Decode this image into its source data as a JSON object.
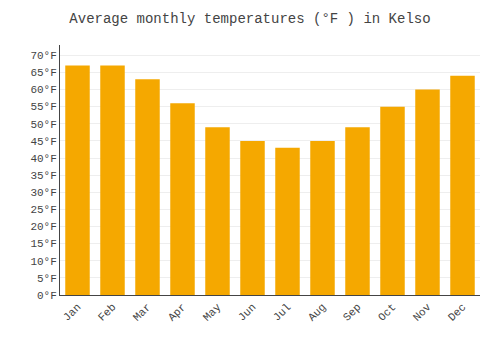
{
  "chart_data": {
    "type": "bar",
    "title": "Average monthly temperatures (°F ) in Kelso",
    "categories": [
      "Jan",
      "Feb",
      "Mar",
      "Apr",
      "May",
      "Jun",
      "Jul",
      "Aug",
      "Sep",
      "Oct",
      "Nov",
      "Dec"
    ],
    "values": [
      67,
      67,
      63,
      56,
      49,
      45,
      43,
      45,
      49,
      55,
      60,
      64
    ],
    "color": "#F5A800",
    "ylim": [
      0,
      73
    ],
    "yticks": [
      {
        "value": 0,
        "label": "0°F"
      },
      {
        "value": 5,
        "label": "5°F"
      },
      {
        "value": 10,
        "label": "10°F"
      },
      {
        "value": 15,
        "label": "15°F"
      },
      {
        "value": 20,
        "label": "20°F"
      },
      {
        "value": 25,
        "label": "25°F"
      },
      {
        "value": 30,
        "label": "30°F"
      },
      {
        "value": 35,
        "label": "35°F"
      },
      {
        "value": 40,
        "label": "40°F"
      },
      {
        "value": 45,
        "label": "45°F"
      },
      {
        "value": 50,
        "label": "50°F"
      },
      {
        "value": 55,
        "label": "55°F"
      },
      {
        "value": 60,
        "label": "60°F"
      },
      {
        "value": 65,
        "label": "65°F"
      },
      {
        "value": 70,
        "label": "70°F"
      }
    ],
    "grid": true
  }
}
